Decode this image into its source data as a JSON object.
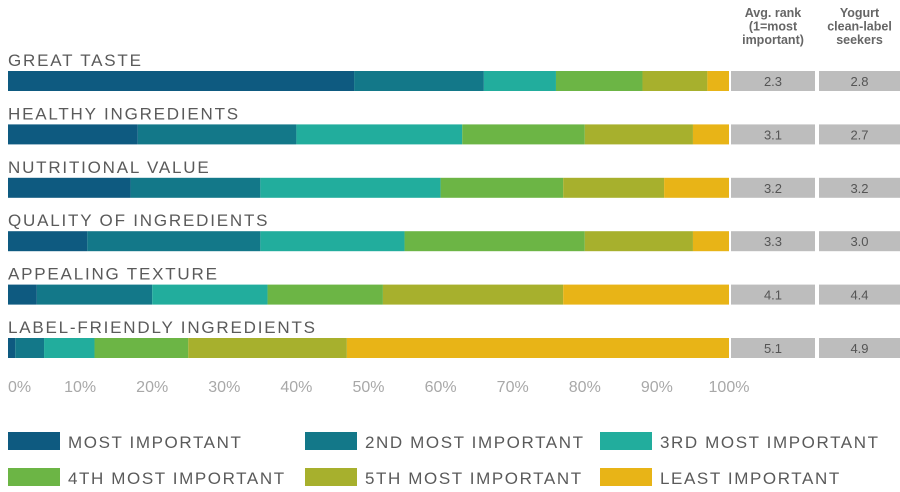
{
  "chart_data": {
    "type": "stacked-bar-horizontal",
    "categories": [
      "GREAT TASTE",
      "HEALTHY INGREDIENTS",
      "NUTRITIONAL VALUE",
      "QUALITY OF INGREDIENTS",
      "APPEALING TEXTURE",
      "LABEL-FRIENDLY INGREDIENTS"
    ],
    "series": [
      {
        "name": "MOST IMPORTANT",
        "color": "#0e5a80",
        "values": [
          48,
          18,
          17,
          11,
          4,
          1
        ]
      },
      {
        "name": "2ND MOST IMPORTANT",
        "color": "#137889",
        "values": [
          18,
          22,
          18,
          24,
          16,
          4
        ]
      },
      {
        "name": "3RD MOST IMPORTANT",
        "color": "#22ad9d",
        "values": [
          10,
          23,
          25,
          20,
          16,
          7
        ]
      },
      {
        "name": "4TH MOST IMPORTANT",
        "color": "#6cb545",
        "values": [
          12,
          17,
          17,
          25,
          16,
          13
        ]
      },
      {
        "name": "5TH MOST IMPORTANT",
        "color": "#a7b02d",
        "values": [
          9,
          15,
          14,
          15,
          25,
          22
        ]
      },
      {
        "name": "LEAST IMPORTANT",
        "color": "#e8b417",
        "values": [
          3,
          5,
          9,
          5,
          23,
          53
        ]
      }
    ],
    "xlim": [
      0,
      100
    ],
    "xticks": [
      {
        "value": 0,
        "label": "0%"
      },
      {
        "value": 10,
        "label": "10%"
      },
      {
        "value": 20,
        "label": "20%"
      },
      {
        "value": 30,
        "label": "30%"
      },
      {
        "value": 40,
        "label": "40%"
      },
      {
        "value": 50,
        "label": "50%"
      },
      {
        "value": 60,
        "label": "60%"
      },
      {
        "value": 70,
        "label": "70%"
      },
      {
        "value": 80,
        "label": "80%"
      },
      {
        "value": 90,
        "label": "90%"
      },
      {
        "value": 100,
        "label": "100%"
      }
    ],
    "columns": [
      {
        "header": [
          "Avg. rank",
          "(1=most",
          "important)"
        ],
        "cells": [
          "2.3",
          "3.1",
          "3.2",
          "3.3",
          "4.1",
          "5.1"
        ]
      },
      {
        "header": [
          "Yogurt",
          "clean-label",
          "seekers"
        ],
        "cells": [
          "2.8",
          "2.7",
          "3.2",
          "3.0",
          "4.4",
          "4.9"
        ]
      }
    ]
  }
}
